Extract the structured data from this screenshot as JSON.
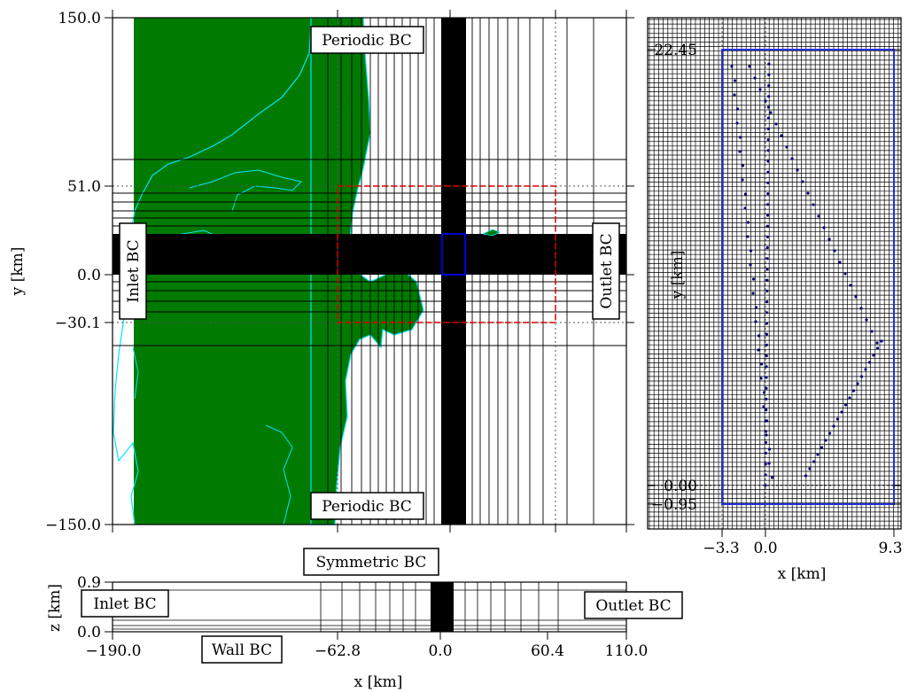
{
  "colors": {
    "land": "#007a00",
    "coast": "#00e5ff",
    "nest_outer": "#dd0000",
    "nest_inner": "#0000ee",
    "mesh_dense": "#000000",
    "turbines": "#000080"
  },
  "main_plot": {
    "xlim": [
      -190.0,
      110.0
    ],
    "ylim": [
      -150.0,
      150.0
    ],
    "ylabel": "y [km]",
    "yticks": [
      "150.0",
      "51.0",
      "0.0",
      "−30.1",
      "−150.0"
    ],
    "bc_top": "Periodic BC",
    "bc_bottom": "Periodic BC",
    "bc_left": "Inlet BC",
    "bc_right": "Outlet BC",
    "red_nest": {
      "x": [
        -62.8,
        60.4
      ],
      "y": [
        -30.1,
        51.0
      ]
    },
    "blue_nest": {
      "x": [
        -3.3,
        9.3
      ],
      "y": [
        -0.95,
        22.45
      ]
    }
  },
  "side_plot": {
    "ylabel": "y [km]",
    "xlabel": "x [km]",
    "yticks": [
      "22.45",
      "0.00",
      "−0.95"
    ],
    "xticks": [
      "−3.3",
      "0.0",
      "9.3"
    ],
    "xlim": [
      -3.3,
      9.3
    ],
    "ylim": [
      -0.95,
      22.45
    ]
  },
  "bottom_plot": {
    "ylabel": "z [km]",
    "xlabel": "x [km]",
    "yticks": [
      "0.9",
      "0.0"
    ],
    "xticks": [
      "−190.0",
      "−62.8",
      "0.0",
      "60.4",
      "110.0"
    ],
    "zlim": [
      0.0,
      0.9
    ],
    "bc_top": "Symmetric BC",
    "bc_bottom": "Wall BC",
    "bc_left": "Inlet BC",
    "bc_right": "Outlet BC"
  }
}
